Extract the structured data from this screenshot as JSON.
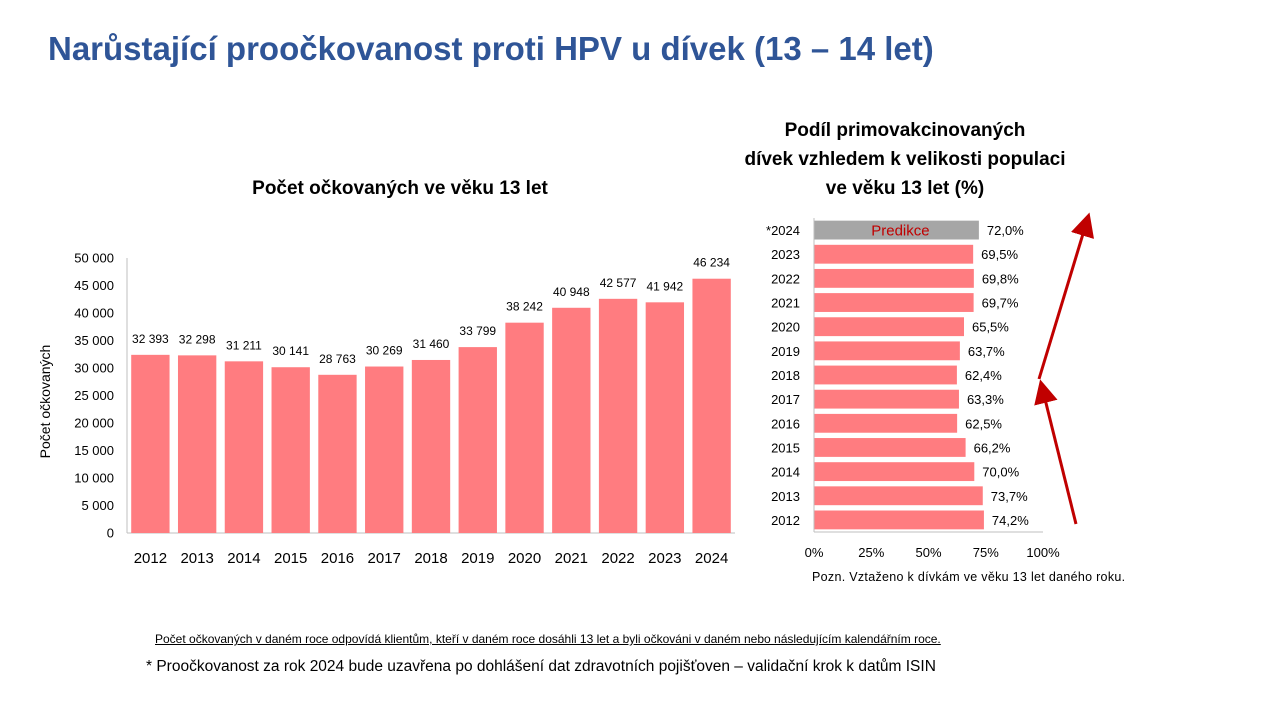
{
  "slide": {
    "title": "Narůstající proočkovanost proti HPV u dívek (13 – 14 let)"
  },
  "chart_data": [
    {
      "type": "bar",
      "title": "Počet očkovaných ve věku 13 let",
      "ylabel": "Počet očkovaných",
      "categories": [
        "2012",
        "2013",
        "2014",
        "2015",
        "2016",
        "2017",
        "2018",
        "2019",
        "2020",
        "2021",
        "2022",
        "2023",
        "2024"
      ],
      "values": [
        32393,
        32298,
        31211,
        30141,
        28763,
        30269,
        31460,
        33799,
        38242,
        40948,
        42577,
        41942,
        46234
      ],
      "data_labels": [
        "32 393",
        "32 298",
        "31 211",
        "30 141",
        "28 763",
        "30 269",
        "31 460",
        "33 799",
        "38 242",
        "40 948",
        "42 577",
        "41 942",
        "46 234"
      ],
      "ylim": [
        0,
        50000
      ],
      "yticks": [
        "0",
        "5 000",
        "10 000",
        "15 000",
        "20 000",
        "25 000",
        "30 000",
        "35 000",
        "40 000",
        "45 000",
        "50 000"
      ],
      "bar_color": "#FF7C80",
      "grid": false
    },
    {
      "type": "bar",
      "orientation": "horizontal",
      "title": "Podíl primovakcinovaných\ndívek vzhledem k velikosti populaci\nve věku 13 let (%)",
      "categories": [
        "*2024",
        "2023",
        "2022",
        "2021",
        "2020",
        "2019",
        "2018",
        "2017",
        "2016",
        "2015",
        "2014",
        "2013",
        "2012"
      ],
      "values": [
        72.0,
        69.5,
        69.8,
        69.7,
        65.5,
        63.7,
        62.4,
        63.3,
        62.5,
        66.2,
        70.0,
        73.7,
        74.2
      ],
      "data_labels": [
        "72,0%",
        "69,5%",
        "69,8%",
        "69,7%",
        "65,5%",
        "63,7%",
        "62,4%",
        "63,3%",
        "62,5%",
        "66,2%",
        "70,0%",
        "73,7%",
        "74,2%"
      ],
      "xlim": [
        0,
        100
      ],
      "xticks": [
        "0%",
        "25%",
        "50%",
        "75%",
        "100%"
      ],
      "bar_color": "#FF7C80",
      "highlight": {
        "category": "*2024",
        "color": "#A6A6A6",
        "label": "Predikce",
        "label_color": "#C00000"
      },
      "arrow_color": "#C00000",
      "grid": false
    }
  ],
  "notes": {
    "source": "Pozn. Vztaženo k dívkám ve věku 13 let daného roku.",
    "footnote_1": "Počet očkovaných v daném roce odpovídá klientům, kteří v daném roce dosáhli 13 let a byli očkováni v daném nebo následujícím kalendářním roce.",
    "footnote_2": "* Proočkovanost za rok 2024 bude uzavřena po dohlášení dat zdravotních pojišťoven – validační krok k datům ISIN"
  }
}
